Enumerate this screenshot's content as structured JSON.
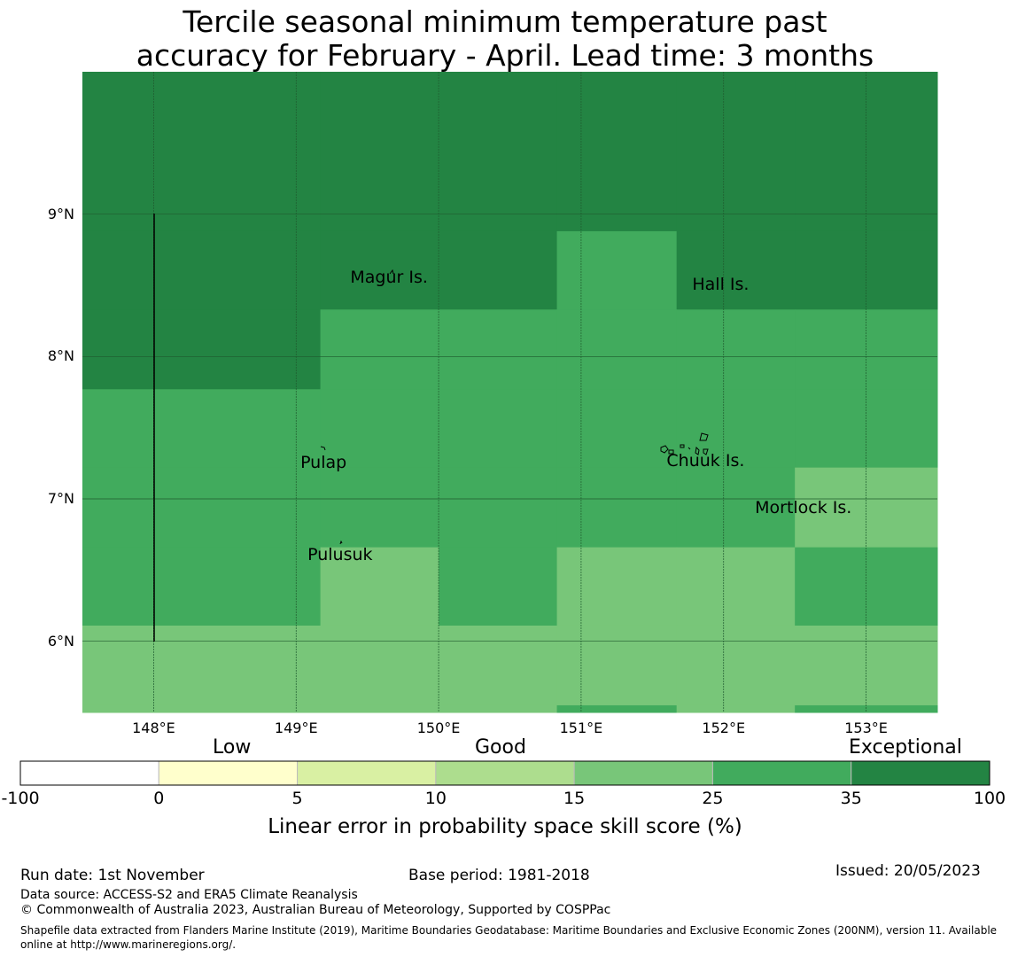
{
  "title_line1": "Tercile seasonal minimum temperature past",
  "title_line2": "accuracy for February - April. Lead time: 3 months",
  "map": {
    "lon_range": [
      147.5,
      153.5
    ],
    "lat_range": [
      5.5,
      10.0
    ],
    "lat_ticks": [
      {
        "value": 9,
        "label": "9°N"
      },
      {
        "value": 8,
        "label": "8°N"
      },
      {
        "value": 7,
        "label": "7°N"
      },
      {
        "value": 6,
        "label": "6°N"
      }
    ],
    "lon_ticks": [
      {
        "value": 148,
        "label": "148°E"
      },
      {
        "value": 149,
        "label": "149°E"
      },
      {
        "value": 150,
        "label": "150°E"
      },
      {
        "value": 151,
        "label": "151°E"
      },
      {
        "value": 152,
        "label": "152°E"
      },
      {
        "value": 153,
        "label": "153°E"
      }
    ],
    "skill_cells_note_colors": {
      "very_high": "#238443",
      "high": "#41ab5d",
      "medium": "#78c679"
    },
    "skill_grid": {
      "lon_edges": [
        147.5,
        149.17,
        150.0,
        150.83,
        151.67,
        152.5,
        153.5
      ],
      "rows": [
        {
          "lat_top": 10.0,
          "lat_bottom": 8.88,
          "classes": [
            "very_high",
            "very_high",
            "very_high",
            "very_high",
            "very_high",
            "very_high"
          ]
        },
        {
          "lat_top": 8.88,
          "lat_bottom": 8.33,
          "classes": [
            "very_high",
            "very_high",
            "very_high",
            "high",
            "very_high",
            "very_high"
          ]
        },
        {
          "lat_top": 8.33,
          "lat_bottom": 7.77,
          "classes": [
            "very_high",
            "high",
            "high",
            "high",
            "high",
            "high"
          ]
        },
        {
          "lat_top": 7.77,
          "lat_bottom": 7.22,
          "classes": [
            "high",
            "high",
            "high",
            "high",
            "high",
            "high"
          ]
        },
        {
          "lat_top": 7.22,
          "lat_bottom": 6.66,
          "classes": [
            "high",
            "high",
            "high",
            "high",
            "high",
            "medium"
          ]
        },
        {
          "lat_top": 6.66,
          "lat_bottom": 6.11,
          "classes": [
            "high",
            "medium",
            "high",
            "medium",
            "medium",
            "high"
          ]
        },
        {
          "lat_top": 6.11,
          "lat_bottom": 5.55,
          "classes": [
            "medium",
            "medium",
            "medium",
            "medium",
            "medium",
            "medium"
          ]
        },
        {
          "lat_top": 5.55,
          "lat_bottom": 5.5,
          "classes": [
            "medium",
            "medium",
            "medium",
            "high",
            "medium",
            "high"
          ]
        }
      ]
    },
    "places": [
      {
        "name": "Magur Is.",
        "lon": 149.38,
        "lat": 8.55
      },
      {
        "name": "Hall Is.",
        "lon": 151.78,
        "lat": 8.5
      },
      {
        "name": "Pulap",
        "lon": 149.03,
        "lat": 7.25
      },
      {
        "name": "Chuuk Is.",
        "lon": 151.6,
        "lat": 7.26
      },
      {
        "name": "Mortlock Is.",
        "lon": 152.22,
        "lat": 6.93
      },
      {
        "name": "Pulusuk",
        "lon": 149.08,
        "lat": 6.6
      }
    ]
  },
  "legend": {
    "categories": {
      "low": "Low",
      "good": "Good",
      "exceptional": "Exceptional"
    },
    "bins": [
      {
        "from": "-100",
        "to": "0",
        "color": "#ffffff"
      },
      {
        "from": "0",
        "to": "5",
        "color": "#ffffcc"
      },
      {
        "from": "5",
        "to": "10",
        "color": "#d9f0a3"
      },
      {
        "from": "10",
        "to": "15",
        "color": "#addd8e"
      },
      {
        "from": "15",
        "to": "25",
        "color": "#78c679"
      },
      {
        "from": "25",
        "to": "35",
        "color": "#41ab5d"
      },
      {
        "from": "35",
        "to": "100",
        "color": "#238443"
      }
    ],
    "tick_labels": [
      "-100",
      "0",
      "5",
      "10",
      "15",
      "25",
      "35",
      "100"
    ],
    "label": "Linear error in probability space skill score (%)"
  },
  "footer": {
    "run_date": "Run date: 1st November",
    "base_period": "Base period: 1981-2018",
    "issued": "Issued: 20/05/2023",
    "data_source": "Data source: ACCESS-S2 and ERA5 Climate Reanalysis",
    "copyright": "© Commonwealth of Australia 2023, Australian Bureau of Meteorology, Supported by COSPPac",
    "shapefile_line1": "Shapefile data extracted from Flanders Marine Institute (2019), Maritime Boundaries Geodatabase: Maritime Boundaries and Exclusive Economic Zones (200NM), version 11. Available",
    "shapefile_line2": "online at http://www.marineregions.org/."
  }
}
